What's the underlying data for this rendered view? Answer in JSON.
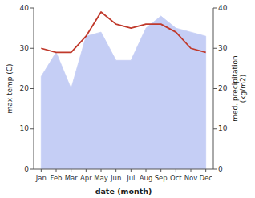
{
  "chart_data": {
    "type": "line",
    "categories": [
      "Jan",
      "Feb",
      "Mar",
      "Apr",
      "May",
      "Jun",
      "Jul",
      "Aug",
      "Sep",
      "Oct",
      "Nov",
      "Dec"
    ],
    "x_label": "date (month)",
    "y_label": "max temp (C)",
    "y2_label": "med. precipitation\n(kg/m2)",
    "ylim": [
      0,
      40
    ],
    "yticks": [
      0,
      10,
      20,
      30,
      40
    ],
    "y2lim": [
      0,
      40
    ],
    "y2ticks": [
      0,
      10,
      20,
      30,
      40
    ],
    "grid": false,
    "series": [
      {
        "type": "area",
        "axis": "y2",
        "color": "#c5cef5",
        "values": [
          23,
          29,
          20,
          33,
          34,
          27,
          27,
          35,
          38,
          35,
          34,
          33
        ]
      },
      {
        "type": "line",
        "color": "#c0392b",
        "values": [
          30,
          29,
          29,
          33,
          39,
          36,
          35,
          36,
          36,
          34,
          30,
          29
        ]
      }
    ]
  }
}
